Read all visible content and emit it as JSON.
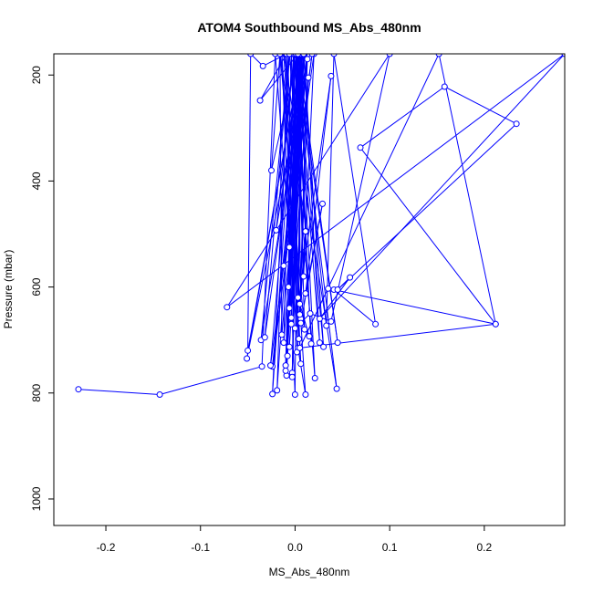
{
  "chart_data": {
    "type": "scatter",
    "title": "ATOM4 Southbound MS_Abs_480nm",
    "xlabel": "MS_Abs_480nm",
    "ylabel": "Pressure (mbar)",
    "xlim": [
      -0.255,
      0.285
    ],
    "ylim": [
      1050,
      160
    ],
    "y_reversed": true,
    "x_ticks": [
      -0.2,
      -0.1,
      0.0,
      0.1,
      0.2
    ],
    "x_tick_labels": [
      "-0.2",
      "-0.1",
      "0.0",
      "0.1",
      "0.2"
    ],
    "y_ticks": [
      200,
      400,
      600,
      800,
      1000
    ],
    "y_tick_labels": [
      "200",
      "400",
      "600",
      "800",
      "1000"
    ],
    "grid": false,
    "legend": "none",
    "series": [
      {
        "color": "#0000ff",
        "marker": "open-circle",
        "connected": true,
        "points": [
          [
            -0.229,
            793
          ],
          [
            -0.143,
            803
          ],
          [
            -0.035,
            750
          ],
          [
            -0.021,
            160
          ],
          [
            0.003,
            715
          ],
          [
            0.011,
            803
          ],
          [
            -0.012,
            160
          ],
          [
            0.044,
            792
          ],
          [
            0.001,
            160
          ],
          [
            -0.024,
            802
          ],
          [
            -0.006,
            160
          ],
          [
            0.021,
            772
          ],
          [
            0.004,
            160
          ],
          [
            -0.019,
            795
          ],
          [
            -0.008,
            160
          ],
          [
            0.006,
            745
          ],
          [
            -0.014,
            160
          ],
          [
            0.0,
            803
          ],
          [
            0.003,
            160
          ],
          [
            -0.009,
            767
          ],
          [
            0.007,
            160
          ],
          [
            -0.003,
            762
          ],
          [
            0.005,
            160
          ],
          [
            -0.01,
            748
          ],
          [
            -0.001,
            160
          ],
          [
            0.002,
            723
          ],
          [
            0.009,
            160
          ],
          [
            -0.006,
            713
          ],
          [
            0.012,
            160
          ],
          [
            -0.012,
            705
          ],
          [
            -0.004,
            160
          ],
          [
            0.004,
            698
          ],
          [
            0.013,
            170
          ],
          [
            -0.014,
            690
          ],
          [
            -0.016,
            160
          ],
          [
            0.01,
            680
          ],
          [
            0.002,
            160
          ],
          [
            -0.004,
            670
          ],
          [
            -0.01,
            160
          ],
          [
            0.006,
            660
          ],
          [
            0.003,
            160
          ],
          [
            -0.006,
            640
          ],
          [
            0.007,
            160
          ],
          [
            0.003,
            620
          ],
          [
            -0.002,
            160
          ],
          [
            -0.007,
            600
          ],
          [
            0.002,
            160
          ],
          [
            0.009,
            580
          ],
          [
            0.02,
            160
          ],
          [
            -0.012,
            560
          ],
          [
            0.004,
            160
          ],
          [
            -0.006,
            525
          ],
          [
            0.01,
            160
          ],
          [
            -0.02,
            493
          ],
          [
            -0.001,
            160
          ],
          [
            0.012,
            495
          ],
          [
            -0.016,
            160
          ],
          [
            -0.025,
            380
          ],
          [
            0.003,
            160
          ],
          [
            -0.037,
            248
          ],
          [
            -0.009,
            160
          ],
          [
            -0.034,
            183
          ],
          [
            -0.047,
            160
          ],
          [
            -0.05,
            720
          ],
          [
            0.007,
            160
          ],
          [
            -0.051,
            735
          ],
          [
            0.014,
            160
          ],
          [
            -0.036,
            700
          ],
          [
            -0.006,
            160
          ],
          [
            -0.032,
            695
          ],
          [
            0.01,
            160
          ],
          [
            -0.024,
            750
          ],
          [
            0.018,
            160
          ],
          [
            -0.026,
            748
          ],
          [
            0.002,
            160
          ],
          [
            -0.008,
            730
          ],
          [
            0.008,
            160
          ],
          [
            -0.01,
            758
          ],
          [
            0.006,
            160
          ],
          [
            -0.003,
            770
          ],
          [
            0.002,
            160
          ],
          [
            0.017,
            707
          ],
          [
            0.001,
            160
          ],
          [
            0.026,
            705
          ],
          [
            0.009,
            160
          ],
          [
            0.03,
            713
          ],
          [
            0.001,
            160
          ],
          [
            0.045,
            705
          ],
          [
            0.003,
            160
          ],
          [
            0.033,
            673
          ],
          [
            0.041,
            160
          ],
          [
            0.085,
            670
          ],
          [
            0.041,
            605
          ],
          [
            0.035,
            603
          ],
          [
            0.212,
            670
          ],
          [
            0.005,
            715
          ],
          [
            0.152,
            160
          ],
          [
            0.212,
            670
          ],
          [
            0.069,
            337
          ],
          [
            0.158,
            222
          ],
          [
            0.234,
            292
          ],
          [
            0.045,
            605
          ],
          [
            0.058,
            582
          ],
          [
            0.026,
            660
          ],
          [
            0.285,
            160
          ],
          [
            -0.072,
            638
          ],
          [
            0.1,
            160
          ],
          [
            0.038,
            665
          ],
          [
            0.016,
            650
          ],
          [
            0.0,
            678
          ],
          [
            0.038,
            202
          ],
          [
            0.011,
            612
          ],
          [
            0.029,
            443
          ],
          [
            0.006,
            668
          ],
          [
            0.015,
            693
          ],
          [
            0.005,
            632
          ],
          [
            0.011,
            495
          ],
          [
            0.005,
            652
          ],
          [
            0.014,
            205
          ],
          [
            -0.004,
            658
          ]
        ]
      }
    ]
  }
}
